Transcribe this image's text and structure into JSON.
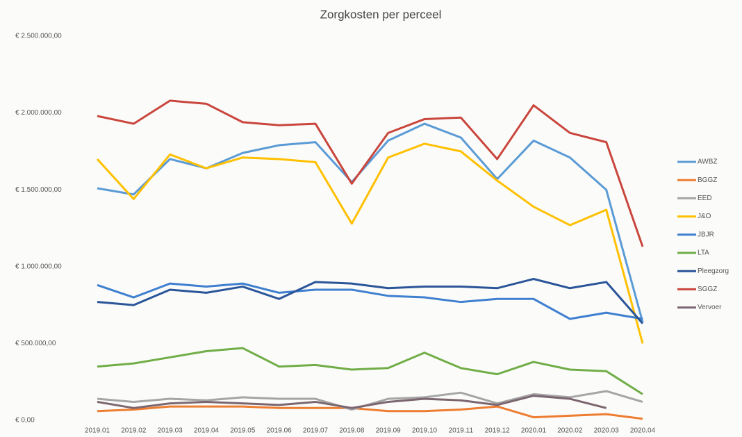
{
  "chart_data": {
    "type": "line",
    "title": "Zorgkosten per perceel",
    "categories": [
      "2019.01",
      "2019.02",
      "2019.03",
      "2019.04",
      "2019.05",
      "2019.06",
      "2019.07",
      "2019.08",
      "2019.09",
      "2019.10",
      "2019.11",
      "2019.12",
      "2020.01",
      "2020.02",
      "2020.03",
      "2020.04"
    ],
    "ylim": [
      0,
      2500000
    ],
    "yticks": [
      {
        "value": 0,
        "label": "€ 0,00"
      },
      {
        "value": 500000,
        "label": "€ 500.000,00"
      },
      {
        "value": 1000000,
        "label": "€ 1.000.000,00"
      },
      {
        "value": 1500000,
        "label": "€ 1.500.000,00"
      },
      {
        "value": 2000000,
        "label": "€ 2.000.000,00"
      },
      {
        "value": 2500000,
        "label": "€ 2.500.000,00"
      }
    ],
    "grid": false,
    "legend": "right",
    "series": [
      {
        "name": "AWBZ",
        "color": "#5b9bd5",
        "values": [
          1510000,
          1470000,
          1700000,
          1640000,
          1740000,
          1790000,
          1810000,
          1550000,
          1820000,
          1930000,
          1840000,
          1570000,
          1820000,
          1710000,
          1500000,
          640000
        ]
      },
      {
        "name": "BGGZ",
        "color": "#ed7d31",
        "values": [
          60000,
          70000,
          90000,
          90000,
          90000,
          80000,
          80000,
          80000,
          60000,
          60000,
          70000,
          90000,
          20000,
          30000,
          40000,
          10000
        ]
      },
      {
        "name": "EED",
        "color": "#a5a5a5",
        "values": [
          140000,
          120000,
          140000,
          130000,
          150000,
          140000,
          140000,
          70000,
          140000,
          150000,
          180000,
          110000,
          170000,
          150000,
          190000,
          120000
        ]
      },
      {
        "name": "J&O",
        "color": "#ffc000",
        "values": [
          1700000,
          1440000,
          1730000,
          1640000,
          1710000,
          1700000,
          1680000,
          1280000,
          1710000,
          1800000,
          1750000,
          1560000,
          1390000,
          1270000,
          1370000,
          500000
        ]
      },
      {
        "name": "JBJR",
        "color": "#3f7fd0",
        "values": [
          880000,
          800000,
          890000,
          870000,
          890000,
          830000,
          850000,
          850000,
          810000,
          800000,
          770000,
          790000,
          790000,
          660000,
          700000,
          660000
        ]
      },
      {
        "name": "LTA",
        "color": "#70ad47",
        "values": [
          350000,
          370000,
          410000,
          450000,
          470000,
          350000,
          360000,
          330000,
          340000,
          440000,
          340000,
          300000,
          380000,
          330000,
          320000,
          170000
        ]
      },
      {
        "name": "Pleegzorg",
        "color": "#2a5599",
        "values": [
          770000,
          750000,
          850000,
          830000,
          870000,
          790000,
          900000,
          890000,
          860000,
          870000,
          870000,
          860000,
          920000,
          860000,
          900000,
          630000
        ]
      },
      {
        "name": "SGGZ",
        "color": "#c9463d",
        "values": [
          1980000,
          1930000,
          2080000,
          2060000,
          1940000,
          1920000,
          1930000,
          1540000,
          1870000,
          1960000,
          1970000,
          1700000,
          2050000,
          1870000,
          1810000,
          1130000
        ]
      },
      {
        "name": "Vervoer",
        "color": "#7b6670",
        "values": [
          120000,
          80000,
          110000,
          120000,
          110000,
          100000,
          120000,
          80000,
          120000,
          140000,
          130000,
          100000,
          160000,
          140000,
          80000,
          null
        ]
      }
    ]
  }
}
